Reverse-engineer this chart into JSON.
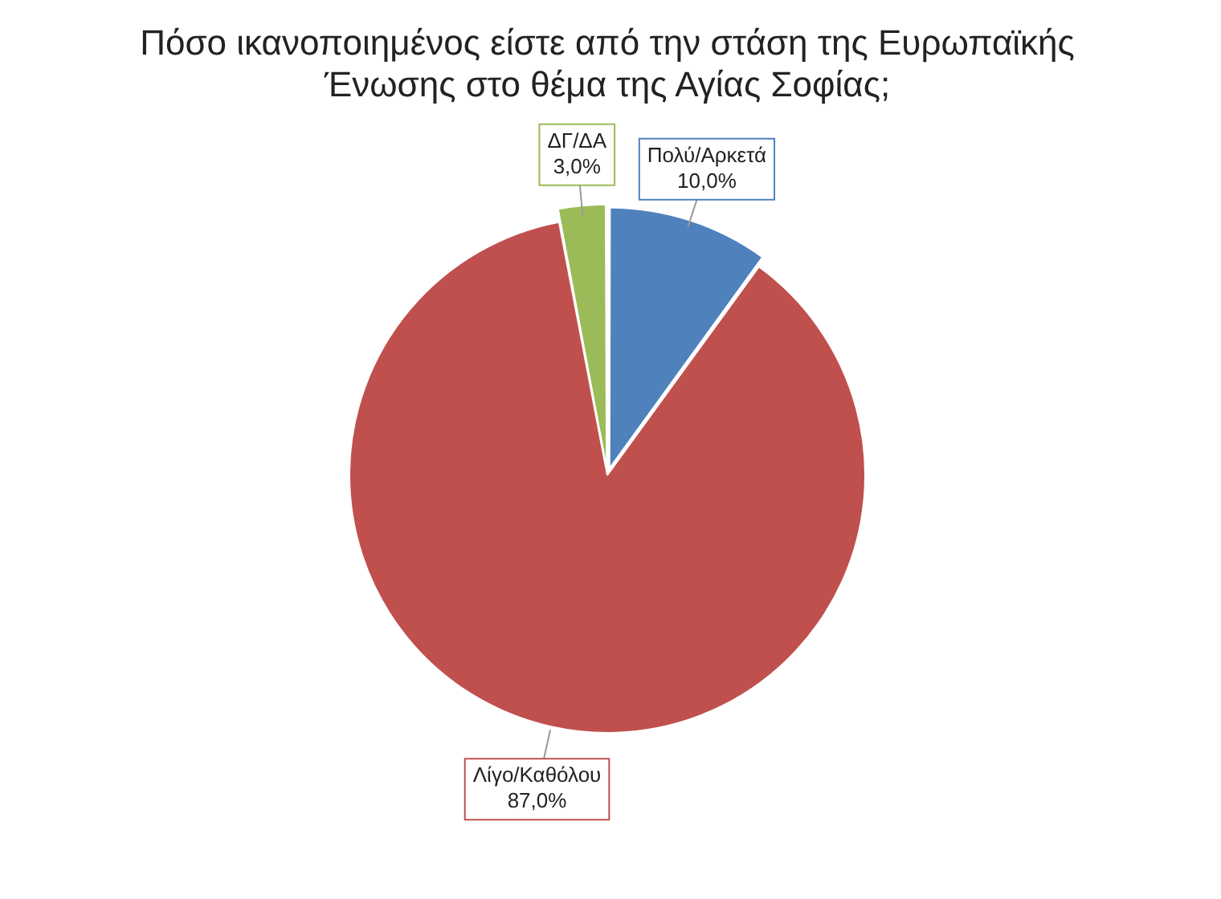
{
  "chart_data": {
    "type": "pie",
    "title": "Πόσο ικανοποιημένος είστε από την στάση της Ευρωπαϊκής Ένωσης στο θέμα της Αγίας Σοφίας;",
    "categories": [
      "Πολύ/Αρκετά",
      "Λίγο/Καθόλου",
      "ΔΓ/ΔΑ"
    ],
    "values": [
      10,
      87,
      3
    ],
    "colors": [
      "#4f81bd",
      "#c0504d",
      "#9bbb59"
    ],
    "value_labels": [
      "10,0%",
      "87,0%",
      "3,0%"
    ],
    "legend": false
  }
}
